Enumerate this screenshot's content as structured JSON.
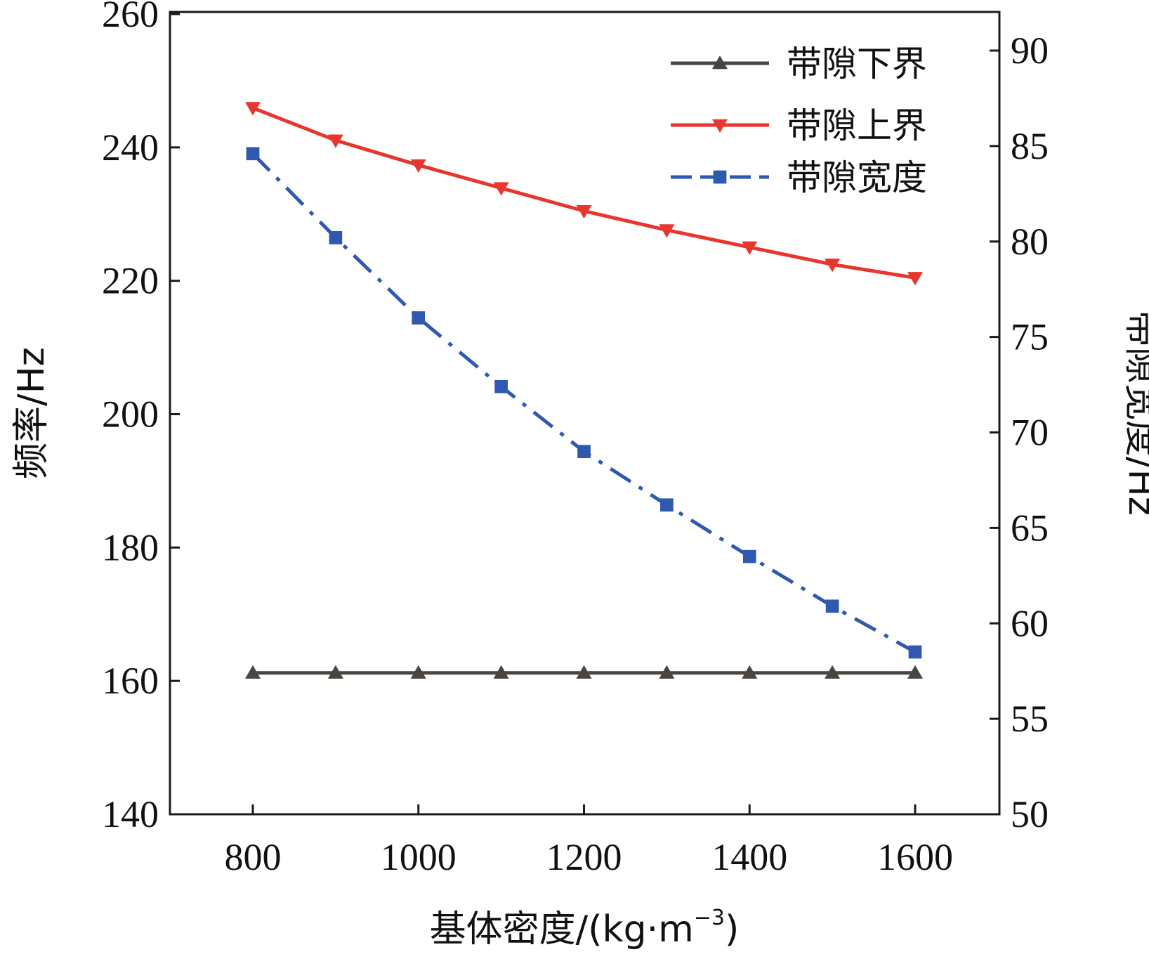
{
  "chart_data": {
    "type": "line",
    "x": [
      800,
      900,
      1000,
      1100,
      1200,
      1300,
      1400,
      1500,
      1600
    ],
    "xlabel": "基体密度/(kg·m⁻³)",
    "xlabel_main": "基体密度/",
    "xlabel_unit": "(kg·m",
    "xlabel_sup": "−3",
    "xlabel_close": ")",
    "xlim": [
      700,
      1700
    ],
    "xticks": [
      800,
      1000,
      1200,
      1400,
      1600
    ],
    "ylabel_left": "频率/Hz",
    "ylim_left": [
      140,
      260
    ],
    "yticks_left": [
      140,
      160,
      180,
      200,
      220,
      240,
      260
    ],
    "ylabel_right": "带隙宽度/Hz",
    "ylim_right": [
      50,
      92
    ],
    "yticks_right": [
      50,
      55,
      60,
      65,
      70,
      75,
      80,
      85,
      90
    ],
    "grid": false,
    "legend_position": "top-right",
    "series": [
      {
        "name": "带隙下界",
        "axis": "left",
        "color": "#4a4540",
        "marker": "triangle-up",
        "dash": "solid",
        "values": [
          161.2,
          161.2,
          161.2,
          161.2,
          161.2,
          161.2,
          161.2,
          161.2,
          161.2
        ]
      },
      {
        "name": "带隙上界",
        "axis": "right",
        "color": "#e8352e",
        "marker": "triangle-down",
        "dash": "solid",
        "values": [
          87.0,
          85.3,
          84.0,
          82.8,
          81.6,
          80.6,
          79.7,
          78.8,
          78.1
        ]
      },
      {
        "name": "带隙宽度",
        "axis": "right",
        "color": "#2f58b0",
        "marker": "square",
        "dash": "dashdot",
        "values": [
          84.6,
          80.2,
          76.0,
          72.4,
          69.0,
          66.2,
          63.5,
          60.9,
          58.5
        ]
      }
    ]
  }
}
